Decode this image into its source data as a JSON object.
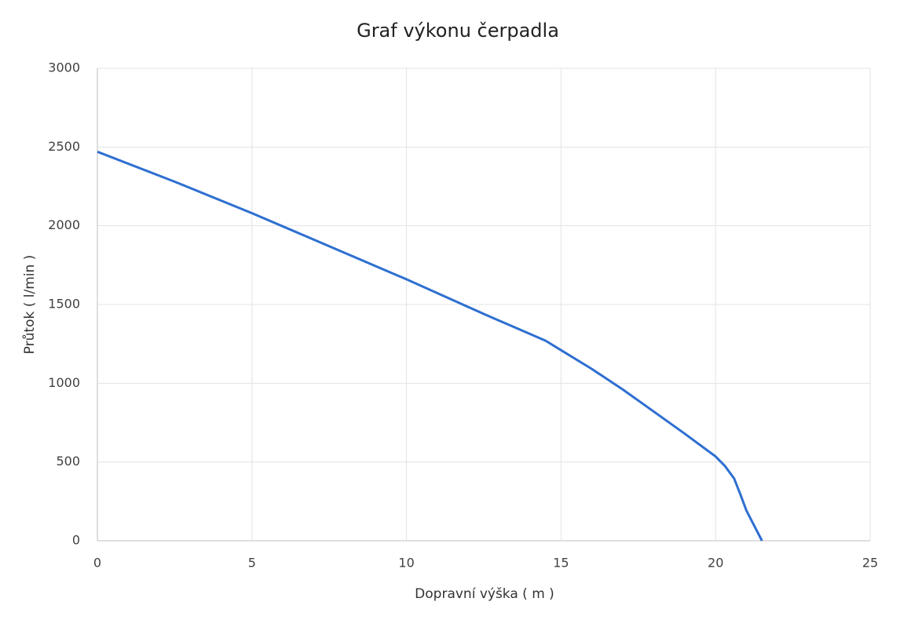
{
  "chart_data": {
    "type": "line",
    "title": "Graf výkonu čerpadla",
    "x_label": "Dopravní výška ( m )",
    "y_label": "Průtok ( l/min )",
    "x": [
      0,
      2.5,
      5,
      7.5,
      10,
      12.5,
      14.5,
      15,
      16,
      17,
      18,
      19,
      20,
      20.3,
      20.6,
      20.8,
      21,
      21.5
    ],
    "series": [
      {
        "name": "Průtok",
        "color": "#2e6fd1",
        "values": [
          2470,
          2280,
          2080,
          1870,
          1660,
          1440,
          1270,
          1210,
          1090,
          960,
          820,
          680,
          535,
          475,
          395,
          295,
          190,
          0
        ]
      }
    ],
    "xlim": [
      0,
      25
    ],
    "xticks": [
      0,
      5,
      10,
      15,
      20,
      25
    ],
    "ylim": [
      0,
      3000
    ],
    "yticks": [
      0,
      500,
      1000,
      1500,
      2000,
      2500,
      3000
    ],
    "grid": true
  }
}
